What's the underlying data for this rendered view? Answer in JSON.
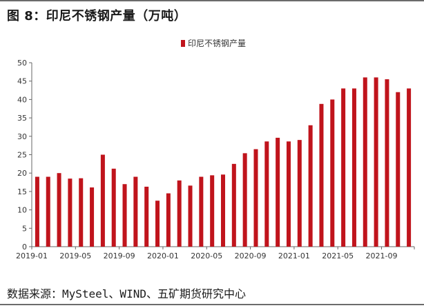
{
  "figure": {
    "title": "图 8：印尼不锈钢产量（万吨）",
    "source": "数据来源：MySteel、WIND、五矿期货研究中心"
  },
  "colors": {
    "bar": "#c0141c",
    "axis": "#666666",
    "text": "#333333"
  },
  "chart_data": {
    "type": "bar",
    "legend": {
      "label": "印尼不锈钢产量",
      "position": "top-center"
    },
    "grid": false,
    "ylim": [
      0,
      50
    ],
    "yticks": [
      0,
      5,
      10,
      15,
      20,
      25,
      30,
      35,
      40,
      45,
      50
    ],
    "xtick_labels": [
      "2019-01",
      "2019-05",
      "2019-09",
      "2020-01",
      "2020-05",
      "2020-09",
      "2021-01",
      "2021-05",
      "2021-09"
    ],
    "xtick_every": 4,
    "categories": [
      "2019-01",
      "2019-02",
      "2019-03",
      "2019-04",
      "2019-05",
      "2019-06",
      "2019-07",
      "2019-08",
      "2019-09",
      "2019-10",
      "2019-11",
      "2019-12",
      "2020-01",
      "2020-02",
      "2020-03",
      "2020-04",
      "2020-05",
      "2020-06",
      "2020-07",
      "2020-08",
      "2020-09",
      "2020-10",
      "2020-11",
      "2020-12",
      "2021-01",
      "2021-02",
      "2021-03",
      "2021-04",
      "2021-05",
      "2021-06",
      "2021-07",
      "2021-08",
      "2021-09",
      "2021-10",
      "2021-11"
    ],
    "series": [
      {
        "name": "印尼不锈钢产量",
        "values": [
          19,
          19,
          20,
          18.5,
          18.6,
          16.1,
          25,
          21.2,
          17,
          19,
          16.3,
          12.5,
          14.5,
          18,
          16.6,
          19,
          19.4,
          19.6,
          22.5,
          25.4,
          26.5,
          28.6,
          29.6,
          28.6,
          29,
          33,
          38.8,
          40,
          43,
          43,
          46,
          46,
          45.5,
          42,
          43
        ]
      }
    ]
  }
}
